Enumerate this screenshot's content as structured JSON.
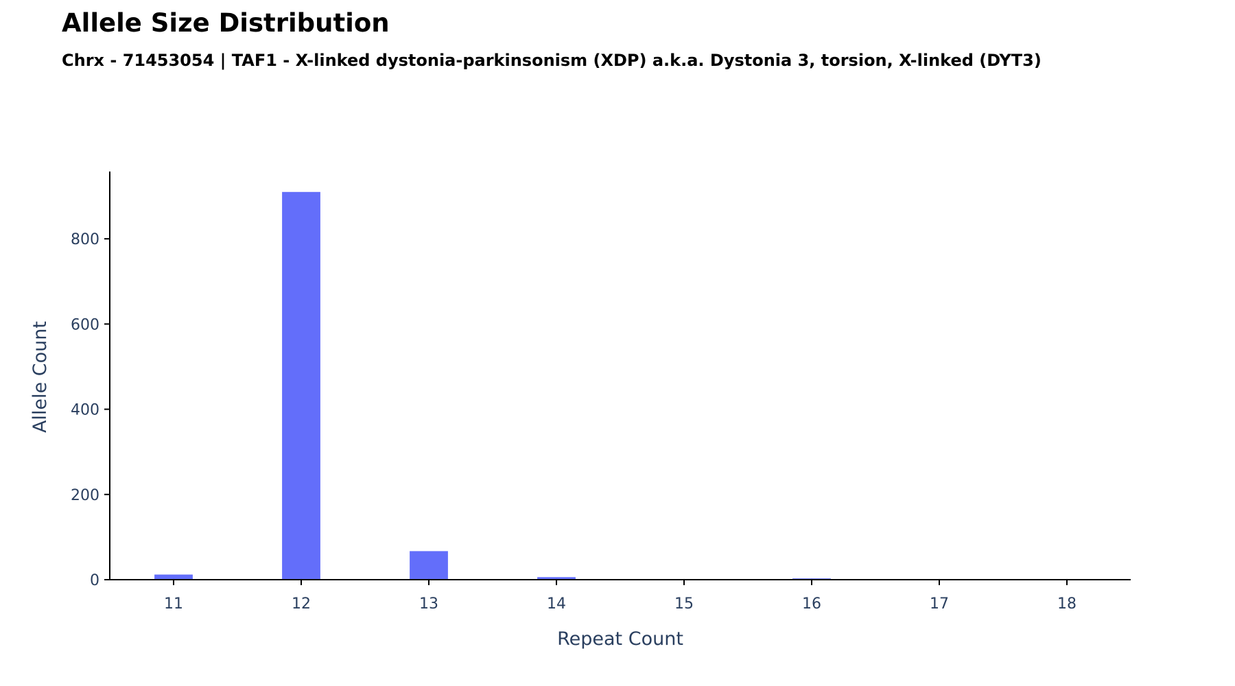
{
  "chart_data": {
    "type": "bar",
    "title": "Allele Size Distribution",
    "subtitle": "Chrx - 71453054 | TAF1 - X-linked dystonia-parkinsonism (XDP) a.k.a. Dystonia 3, torsion, X-linked (DYT3)",
    "xlabel": "Repeat Count",
    "ylabel": "Allele Count",
    "x": [
      11,
      12,
      13,
      14,
      15,
      16,
      17,
      18
    ],
    "x_tick_labels": [
      "11",
      "12",
      "13",
      "14",
      "15",
      "16",
      "17",
      "18"
    ],
    "values": [
      12,
      910,
      67,
      6,
      0,
      3,
      0,
      0
    ],
    "xlim": [
      10.5,
      18.5
    ],
    "ylim": [
      0,
      958
    ],
    "y_ticks": [
      0,
      200,
      400,
      600,
      800
    ],
    "y_tick_labels": [
      "0",
      "200",
      "400",
      "600",
      "800"
    ],
    "bar_color": "#636efa",
    "axis_text_color": "#2a3f5f",
    "grid": false,
    "legend": "none"
  }
}
